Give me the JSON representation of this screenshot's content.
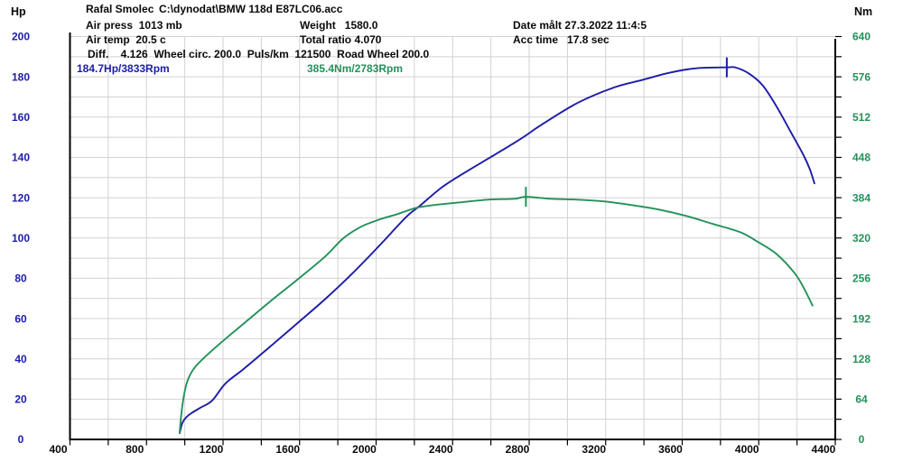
{
  "header": {
    "operator": "Rafal Smolec",
    "file_path": "C:\\dynodat\\BMW 118d E87LC06.acc",
    "air_press": "Air press  1013 mb",
    "weight": "Weight   1580.0",
    "date_measured": "Date målt 27.3.2022 11:4:5",
    "air_temp": "Air temp  20.5 c",
    "total_ratio": "Total ratio 4.070",
    "acc_time": "Acc time   17.8 sec",
    "diff_line": "Diff.    4.126  Wheel circ. 200.0  Puls/km  121500  Road Wheel 200.0",
    "power_peak_label": "184.7Hp/3833Rpm",
    "torque_peak_label": "385.4Nm/2783Rpm"
  },
  "colors": {
    "power": "#1c1ca8",
    "torque": "#23915a",
    "grid": "#d2d2d2",
    "axis": "#000000",
    "x_labels": "#0a0a0a"
  },
  "chart_data": {
    "type": "line",
    "grid": true,
    "xlim": [
      400,
      4400
    ],
    "x_ticks_labeled": [
      400,
      800,
      1200,
      1600,
      2000,
      2400,
      2800,
      3200,
      3600,
      4000,
      4400
    ],
    "x_minor_step": 200,
    "left_axis": {
      "title": "Hp",
      "lim": [
        0,
        200
      ],
      "ticks": [
        0,
        20,
        40,
        60,
        80,
        100,
        120,
        140,
        160,
        180,
        200
      ],
      "minor_step": 10
    },
    "right_axis": {
      "title": "Nm",
      "lim": [
        0,
        640
      ],
      "ticks": [
        0,
        64,
        128,
        192,
        256,
        320,
        384,
        448,
        512,
        576,
        640
      ],
      "minor_step": 32
    },
    "series": [
      {
        "name": "power",
        "unit": "Hp",
        "axis": "left",
        "points": [
          [
            973,
            3.1
          ],
          [
            987,
            8.1
          ],
          [
            1006,
            10.8
          ],
          [
            1034,
            13.0
          ],
          [
            1081,
            15.7
          ],
          [
            1143,
            19.3
          ],
          [
            1213,
            27.8
          ],
          [
            1308,
            35.0
          ],
          [
            1449,
            46.3
          ],
          [
            1591,
            57.9
          ],
          [
            1733,
            69.6
          ],
          [
            1874,
            82.2
          ],
          [
            2016,
            96.1
          ],
          [
            2158,
            110.5
          ],
          [
            2228,
            115.9
          ],
          [
            2346,
            125.3
          ],
          [
            2464,
            132.5
          ],
          [
            2630,
            141.9
          ],
          [
            2762,
            149.6
          ],
          [
            2866,
            156.3
          ],
          [
            3054,
            167.1
          ],
          [
            3243,
            174.7
          ],
          [
            3385,
            178.3
          ],
          [
            3527,
            181.9
          ],
          [
            3668,
            184.2
          ],
          [
            3833,
            184.7
          ],
          [
            3880,
            184.6
          ],
          [
            3951,
            181.5
          ],
          [
            4022,
            175.6
          ],
          [
            4093,
            165.3
          ],
          [
            4164,
            153.2
          ],
          [
            4234,
            141.1
          ],
          [
            4268,
            133.9
          ],
          [
            4291,
            127.1
          ]
        ]
      },
      {
        "name": "torque",
        "unit": "Nm",
        "axis": "right",
        "points": [
          [
            973,
            10.1
          ],
          [
            982,
            40.2
          ],
          [
            996,
            70.4
          ],
          [
            1010,
            89.1
          ],
          [
            1029,
            103.5
          ],
          [
            1058,
            116.4
          ],
          [
            1100,
            129.4
          ],
          [
            1157,
            145.2
          ],
          [
            1223,
            162.4
          ],
          [
            1308,
            184.0
          ],
          [
            1449,
            219.9
          ],
          [
            1591,
            254.4
          ],
          [
            1733,
            290.3
          ],
          [
            1827,
            319.1
          ],
          [
            1921,
            337.8
          ],
          [
            2016,
            349.2
          ],
          [
            2111,
            357.9
          ],
          [
            2210,
            367.9
          ],
          [
            2299,
            372.2
          ],
          [
            2441,
            376.6
          ],
          [
            2583,
            380.9
          ],
          [
            2724,
            382.3
          ],
          [
            2783,
            385.4
          ],
          [
            2913,
            382.3
          ],
          [
            3054,
            380.9
          ],
          [
            3196,
            378.0
          ],
          [
            3338,
            372.2
          ],
          [
            3479,
            365.1
          ],
          [
            3621,
            355.0
          ],
          [
            3762,
            342.1
          ],
          [
            3904,
            329.1
          ],
          [
            3998,
            313.3
          ],
          [
            4093,
            294.6
          ],
          [
            4187,
            264.4
          ],
          [
            4234,
            241.4
          ],
          [
            4281,
            212.7
          ]
        ]
      }
    ],
    "peaks": {
      "power": {
        "rpm": 3833,
        "value": 184.7
      },
      "torque": {
        "rpm": 2783,
        "value": 385.4
      }
    }
  }
}
